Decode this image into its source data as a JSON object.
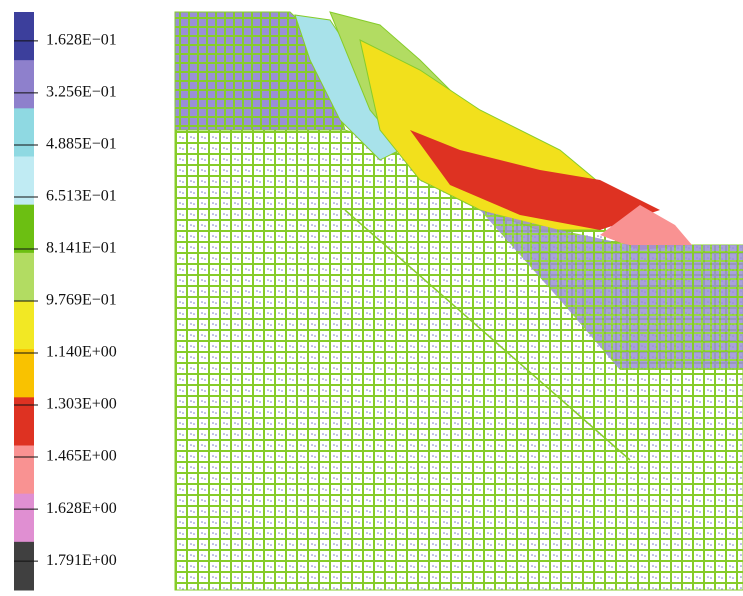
{
  "legend": {
    "labels": [
      "1.628E−01",
      "3.256E−01",
      "4.885E−01",
      "6.513E−01",
      "8.141E−01",
      "9.769E−01",
      "1.140E+00",
      "1.303E+00",
      "1.465E+00",
      "1.628E+00",
      "1.791E+00"
    ],
    "colors": [
      "#3c3f9c",
      "#8e80cc",
      "#8fd9e2",
      "#c0ebf3",
      "#6cbf12",
      "#b2dc62",
      "#f2e824",
      "#f9c200",
      "#de3222",
      "#f99292",
      "#e08fd2",
      "#404040"
    ]
  }
}
